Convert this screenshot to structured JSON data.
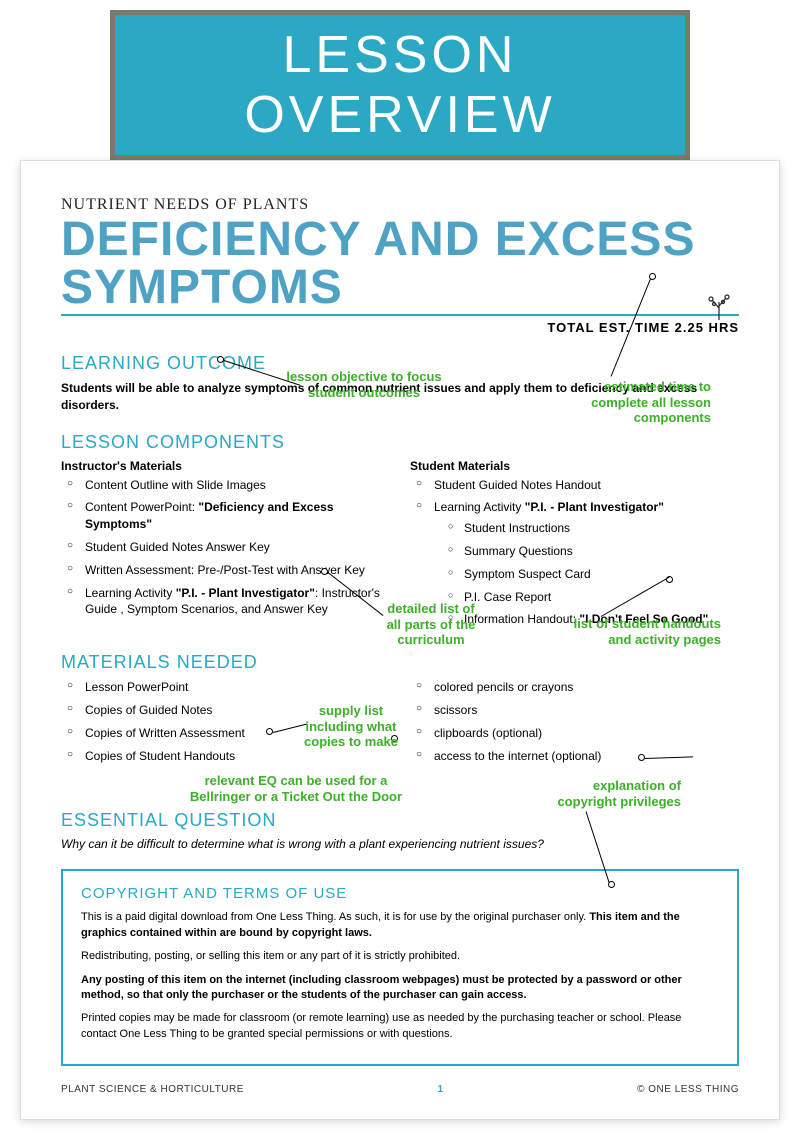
{
  "banner": "LESSON OVERVIEW",
  "pretitle": "NUTRIENT NEEDS OF PLANTS",
  "title": "DEFICIENCY AND EXCESS SYMPTOMS",
  "est_time": "TOTAL EST. TIME 2.25 HRS",
  "colors": {
    "accent": "#2AA8C4",
    "title_blue": "#4EA3C4",
    "annot_green": "#3DAF2A",
    "banner_border": "#7a7a6a"
  },
  "learning_outcome": {
    "heading": "LEARNING OUTCOME",
    "text": "Students will be able to analyze symptoms of common nutrient issues and apply them to deficiency and excess disorders."
  },
  "lesson_components": {
    "heading": "LESSON COMPONENTS",
    "instructor_h": "Instructor's Materials",
    "instructor": [
      "Content Outline with Slide Images",
      "Content PowerPoint: <b>\"Deficiency and Excess Symptoms\"</b>",
      "Student Guided Notes Answer Key",
      "Written Assessment: Pre-/Post-Test with Answer Key",
      "Learning Activity <b>\"P.I. - Plant Investigator\"</b>: Instructor's Guide , Symptom Scenarios, and Answer Key"
    ],
    "student_h": "Student Materials",
    "student": [
      "Student Guided Notes Handout",
      "Learning Activity <b>\"P.I. - Plant Investigator\"</b>"
    ],
    "student_sub": [
      "Student Instructions",
      "Summary Questions",
      "Symptom Suspect Card",
      "P.I. Case Report",
      "Information Handout: <b>\"I Don't Feel So Good\"</b>"
    ]
  },
  "materials_needed": {
    "heading": "MATERIALS NEEDED",
    "left": [
      "Lesson PowerPoint",
      "Copies of Guided Notes",
      "Copies of Written Assessment",
      "Copies of Student Handouts"
    ],
    "right": [
      "colored pencils or crayons",
      "scissors",
      "clipboards (optional)",
      "access to the internet (optional)"
    ]
  },
  "essential_question": {
    "heading": "ESSENTIAL QUESTION",
    "text": "Why can it be difficult to determine what is wrong with a plant experiencing nutrient issues?"
  },
  "copyright": {
    "heading": "COPYRIGHT AND TERMS OF USE",
    "p1": "This is a paid digital download from One Less Thing. As such, it is for use by the original purchaser only. <b>This item and the graphics contained within are bound by copyright laws.</b>",
    "p2": "Redistributing, posting, or selling this item or any part of it is strictly prohibited.",
    "p3": "<b>Any posting of this item on the internet (including classroom webpages) must be protected by a password or other method, so that only the purchaser or the students of the purchaser can gain access.</b>",
    "p4": "Printed copies may be made for classroom (or remote learning) use as needed by the purchasing teacher or school. Please contact One Less Thing to be granted special permissions or with questions."
  },
  "footer": {
    "left": "PLANT SCIENCE & HORTICULTURE",
    "page": "1",
    "right": "© ONE LESS THING"
  },
  "annotations": {
    "a1": "lesson objective to focus\nstudent  outcomes",
    "a2": "estimated time to\ncomplete all lesson\ncomponents",
    "a3": "detailed list of\nall parts of the\ncurriculum",
    "a4": "list of student handouts\nand activity pages",
    "a5": "supply list\nincluding what\ncopies to make",
    "a6": "relevant EQ can be used for a\nBellringer or a Ticket Out the Door",
    "a7": "explanation of\ncopyright privileges"
  }
}
